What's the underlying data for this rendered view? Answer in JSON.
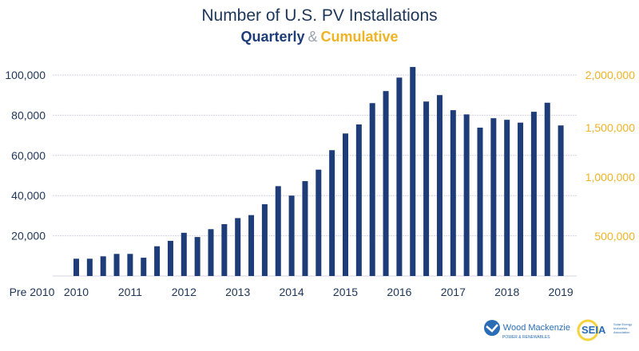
{
  "title": "Number of U.S. PV Installations",
  "subtitle": {
    "quarterly": "Quarterly",
    "amp": "&",
    "cumulative": "Cumulative"
  },
  "colors": {
    "bars": "#1d3c78",
    "left_axis": "#1d3557",
    "right_axis": "#f0b323",
    "grid": "#d6cfe0"
  },
  "chart_data": {
    "type": "bar",
    "title": "Number of U.S. PV Installations",
    "subtitle": "Quarterly & Cumulative",
    "x_labels": [
      "Pre 2010",
      "2010",
      "2011",
      "2012",
      "2013",
      "2014",
      "2015",
      "2016",
      "2017",
      "2018",
      "2019"
    ],
    "categories": [
      "2010 Q1",
      "2010 Q2",
      "2010 Q3",
      "2010 Q4",
      "2011 Q1",
      "2011 Q2",
      "2011 Q3",
      "2011 Q4",
      "2012 Q1",
      "2012 Q2",
      "2012 Q3",
      "2012 Q4",
      "2013 Q1",
      "2013 Q2",
      "2013 Q3",
      "2013 Q4",
      "2014 Q1",
      "2014 Q2",
      "2014 Q3",
      "2014 Q4",
      "2015 Q1",
      "2015 Q2",
      "2015 Q3",
      "2015 Q4",
      "2016 Q1",
      "2016 Q2",
      "2016 Q3",
      "2016 Q4",
      "2017 Q1",
      "2017 Q2",
      "2017 Q3",
      "2017 Q4",
      "2018 Q1",
      "2018 Q2",
      "2018 Q3",
      "2018 Q4",
      "2019 Q1"
    ],
    "series": [
      {
        "name": "Quarterly",
        "values": [
          8600,
          8600,
          9800,
          11000,
          11000,
          9100,
          14800,
          17500,
          21500,
          19400,
          23300,
          25800,
          28800,
          30300,
          35700,
          44700,
          40000,
          47200,
          52900,
          62600,
          70900,
          75400,
          86000,
          92000,
          98700,
          104000,
          86800,
          90000,
          82500,
          80400,
          73800,
          78500,
          77700,
          76300,
          81700,
          86200,
          74900
        ]
      }
    ],
    "left_axis": {
      "ylim": [
        0,
        100000
      ],
      "ticks": [
        "20,000",
        "40,000",
        "60,000",
        "80,000",
        "100,000"
      ],
      "tick_values": [
        20000,
        40000,
        60000,
        80000,
        100000
      ]
    },
    "right_axis": {
      "label": "Cumulative",
      "ticks": [
        "500,000",
        "1,000,000",
        "1,500,000",
        "2,000,000"
      ],
      "tick_values": [
        500000,
        1000000,
        1500000,
        2000000
      ]
    },
    "grid": true,
    "legend": "none"
  },
  "logos": {
    "wood_mackenzie": "Wood Mackenzie",
    "wood_mackenzie_sub": "POWER & RENEWABLES",
    "seia": "SEIA",
    "seia_sub": "Solar Energy Industries Association"
  }
}
